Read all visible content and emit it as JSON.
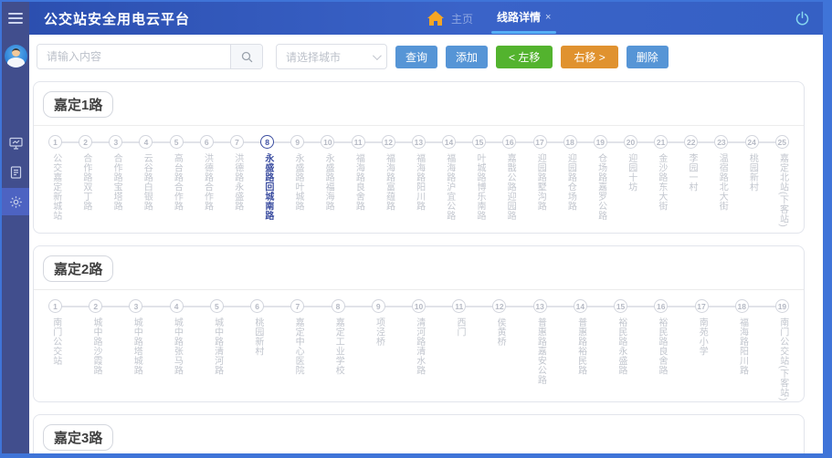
{
  "header": {
    "title": "公交站安全用电云平台",
    "home_label": "主页",
    "tab": {
      "label": "线路详情",
      "close": "×"
    }
  },
  "sidebar": {
    "icons": [
      {
        "name": "hamburger-icon"
      },
      {
        "name": "user-avatar"
      },
      {
        "name": "monitor-icon",
        "active": false
      },
      {
        "name": "document-icon",
        "active": false
      },
      {
        "name": "gear-icon",
        "active": true
      }
    ]
  },
  "toolbar": {
    "search_placeholder": "请输入内容",
    "search_icon": "magnifier",
    "city_placeholder": "请选择城市",
    "query_label": "查询",
    "add_label": "添加",
    "move_left_label": "< 左移",
    "move_right_label": "右移 >",
    "delete_label": "删除"
  },
  "routes": [
    {
      "name": "嘉定1路",
      "active_stop": 8,
      "stops": [
        "公交嘉定新城站",
        "合作路双丁路",
        "合作路宝塔路",
        "云谷路白银路",
        "高台路合作路",
        "洪德路合作路",
        "洪德路永盛路",
        "永盛路回城南路",
        "永盛路叶城路",
        "永盛路福海路",
        "福海路良舍路",
        "福海路富蕴路",
        "福海路阳川路",
        "福海路沪宜公路",
        "叶城路博乐南路",
        "嘉戬公路迎园路",
        "迎园路墅沟路",
        "迎园路仓场路",
        "仓场路嘉罗公路",
        "迎园十坊",
        "金沙路东大街",
        "李园一村",
        "温宿路北大街",
        "桃园新村",
        "嘉定北站(下客站)"
      ]
    },
    {
      "name": "嘉定2路",
      "active_stop": null,
      "stops": [
        "南门公交站",
        "城中路沙霞路",
        "城中路塔城路",
        "城中路张马路",
        "城中路清河路",
        "桃园新村",
        "嘉定中心医院",
        "嘉定工业学校",
        "项泾桥",
        "清河路清水路",
        "西门",
        "侯黄桥",
        "普惠路嘉安公路",
        "普惠路裕民路",
        "裕民路永盛路",
        "裕民路良舍路",
        "南苑小学",
        "福海路阳川路",
        "南门公交站(下客站)"
      ]
    },
    {
      "name": "嘉定3路",
      "active_stop": null,
      "stops": []
    }
  ],
  "colors": {
    "frame_blue": "#3f74d8",
    "header_blue": "#3a63c8",
    "sidebar_navy": "#414e8d",
    "sidebar_active": "#4d63c2",
    "tab_underline": "#55aef5",
    "home_orange": "#f6a623",
    "button_blue": "#5695d6",
    "button_green": "#53b32e",
    "button_orange": "#e0922f",
    "stop_inactive": "#c2c6ce",
    "stop_active": "#3b4da0"
  }
}
